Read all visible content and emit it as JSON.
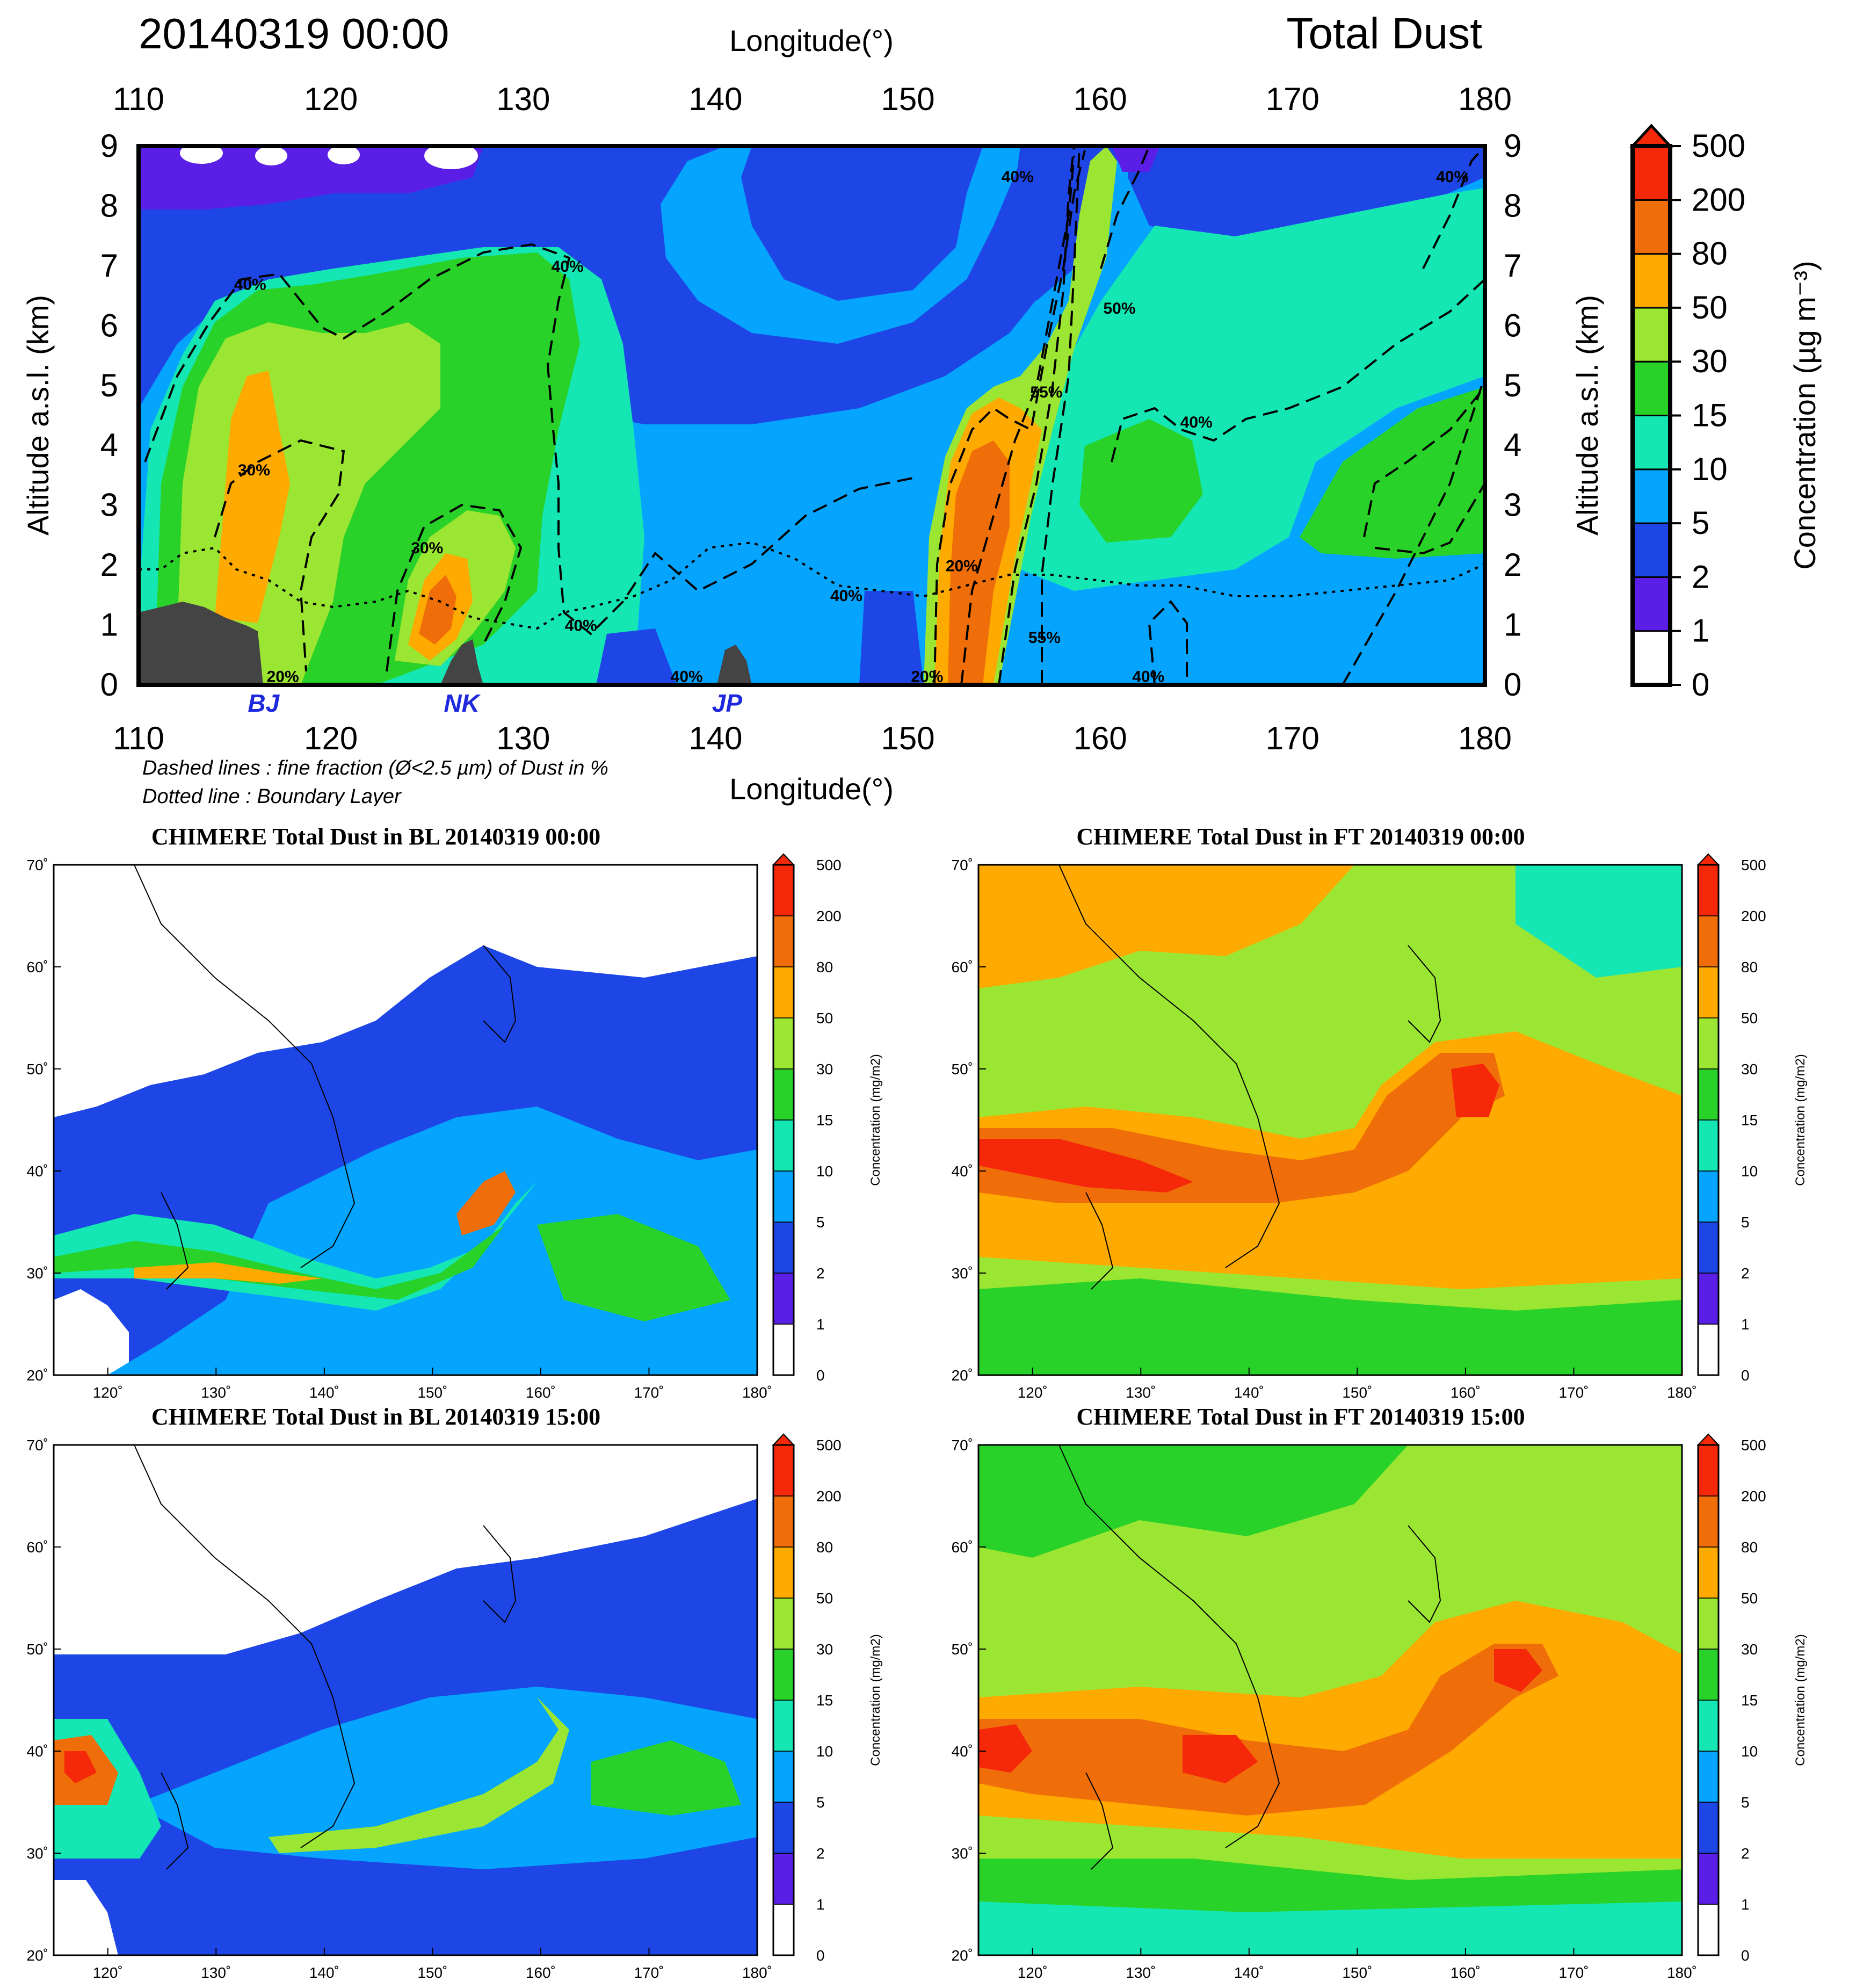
{
  "cross_section": {
    "datetime": "20140319 00:00",
    "title": "Total Dust",
    "top_axis_label": "Longitude(°)",
    "bottom_axis_label": "Longitude(°)",
    "y_axis_label": "Altitude a.s.l. (km)",
    "x_ticks": [
      "110",
      "120",
      "130",
      "140",
      "150",
      "160",
      "170",
      "180"
    ],
    "y_ticks": [
      "0",
      "1",
      "2",
      "3",
      "4",
      "5",
      "6",
      "7",
      "8",
      "9"
    ],
    "site_labels": [
      {
        "text": "BJ",
        "lon": 116.5
      },
      {
        "text": "NK",
        "lon": 126.8
      },
      {
        "text": "JP",
        "lon": 140.6
      }
    ],
    "contour_labels": [
      {
        "text": "40%",
        "lon": 115.8,
        "alt": 6.6
      },
      {
        "text": "40%",
        "lon": 132.3,
        "alt": 6.9
      },
      {
        "text": "30%",
        "lon": 116.0,
        "alt": 3.5
      },
      {
        "text": "30%",
        "lon": 125.0,
        "alt": 2.2
      },
      {
        "text": "40%",
        "lon": 133.0,
        "alt": 0.9
      },
      {
        "text": "40%",
        "lon": 146.8,
        "alt": 1.4
      },
      {
        "text": "20%",
        "lon": 152.8,
        "alt": 1.9
      },
      {
        "text": "40%",
        "lon": 155.7,
        "alt": 8.4
      },
      {
        "text": "55%",
        "lon": 157.2,
        "alt": 4.8
      },
      {
        "text": "55%",
        "lon": 157.1,
        "alt": 0.7
      },
      {
        "text": "50%",
        "lon": 161.0,
        "alt": 6.2
      },
      {
        "text": "40%",
        "lon": 165.0,
        "alt": 4.3
      },
      {
        "text": "40%",
        "lon": 178.3,
        "alt": 8.4
      },
      {
        "text": "20%",
        "lon": 151.0,
        "alt": 0.05
      },
      {
        "text": "40%",
        "lon": 138.5,
        "alt": 0.05
      },
      {
        "text": "40%",
        "lon": 162.5,
        "alt": 0.05
      },
      {
        "text": "20%",
        "lon": 117.5,
        "alt": 0.05
      }
    ],
    "notes": [
      "Dashed lines : fine fraction (Ø<2.5 µm) of Dust in %",
      "Dotted line : Boundary Layer"
    ],
    "colorbar": {
      "label": "Concentration (µg m⁻³)",
      "levels": [
        "0",
        "1",
        "2",
        "5",
        "10",
        "15",
        "30",
        "50",
        "80",
        "200",
        "500"
      ],
      "colors": [
        "#ffffff",
        "#5a1ee6",
        "#1e46e6",
        "#05a5ff",
        "#14e6b4",
        "#28d228",
        "#9be632",
        "#ffaa00",
        "#f06e0a",
        "#f5280a"
      ]
    }
  },
  "maps": [
    {
      "title": "CHIMERE   Total Dust in BL   20140319 00:00"
    },
    {
      "title": "CHIMERE   Total Dust in FT   20140319 00:00"
    },
    {
      "title": "CHIMERE   Total Dust in BL   20140319 15:00"
    },
    {
      "title": "CHIMERE   Total Dust in FT   20140319 15:00"
    }
  ],
  "map_axes": {
    "lat_ticks": [
      "70˚",
      "60˚",
      "50˚",
      "40˚",
      "30˚",
      "20˚"
    ],
    "lon_ticks": [
      "120˚",
      "130˚",
      "140˚",
      "150˚",
      "160˚",
      "170˚",
      "180˚"
    ],
    "colorbar_label": "Concentration (mg/m2)",
    "colorbar_levels": [
      "0",
      "1",
      "2",
      "5",
      "10",
      "15",
      "30",
      "50",
      "80",
      "200",
      "500"
    ]
  }
}
